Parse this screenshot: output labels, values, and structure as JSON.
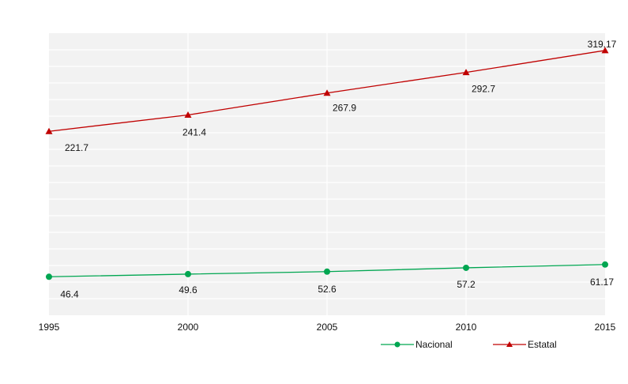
{
  "chart_data": {
    "type": "line",
    "title": "",
    "xlabel": "",
    "ylabel": "",
    "x": [
      "1995",
      "2000",
      "2005",
      "2010",
      "2015"
    ],
    "ylim": [
      0,
      340
    ],
    "grid": true,
    "legend_position": "bottom-right",
    "series": [
      {
        "name": "Nacional",
        "color": "#00a651",
        "marker": "circle",
        "values": [
          46.4,
          49.6,
          52.6,
          57.2,
          61.17
        ],
        "labels": [
          "46.4",
          "49.6",
          "52.6",
          "57.2",
          "61.17"
        ]
      },
      {
        "name": "Estatal",
        "color": "#c00000",
        "marker": "triangle",
        "values": [
          221.7,
          241.4,
          267.9,
          292.7,
          319.17
        ],
        "labels": [
          "221.7",
          "241.4",
          "267.9",
          "292.7",
          "319.17"
        ]
      }
    ]
  }
}
